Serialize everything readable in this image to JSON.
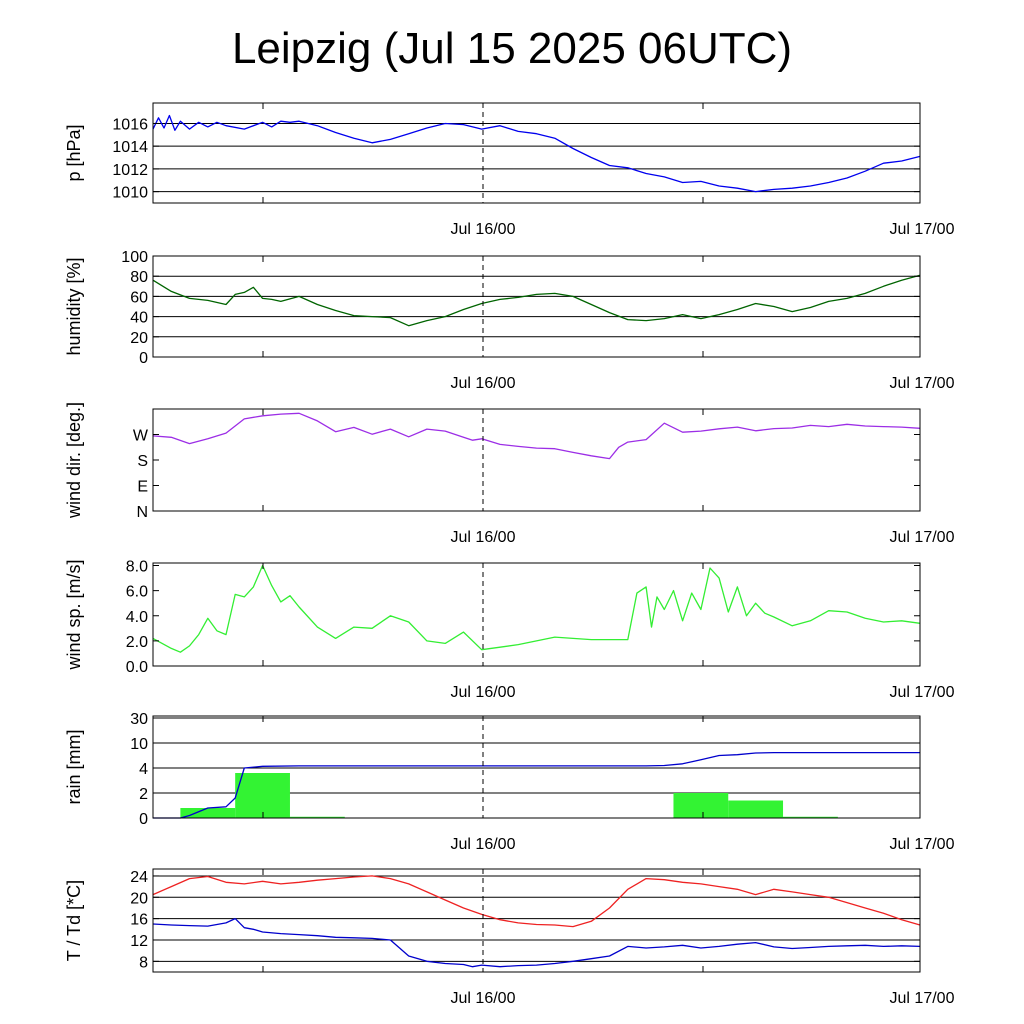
{
  "title": "Leipzig (Jul 15 2025 06UTC)",
  "colors": {
    "pressure": "#0000ee",
    "humidity": "#006400",
    "wind_dir": "#9c2ee6",
    "wind_speed": "#33ee33",
    "rain_bars": "#33f333",
    "rain_accum": "#0000cc",
    "temperature": "#ee2222",
    "dewpoint": "#0000cc",
    "grid": "#000000"
  },
  "chart_data": [
    {
      "type": "line",
      "ylabel": "p [hPa]",
      "x_tick_labels": [
        "Jul 16/00",
        "Jul 17/00"
      ],
      "x_range_hours": [
        0,
        42
      ],
      "ylim": [
        1009,
        1017.8
      ],
      "y_ticks": [
        1010,
        1012,
        1014,
        1016
      ],
      "grid_lines": [
        1010,
        1012,
        1014,
        1016
      ],
      "grid": true,
      "series": [
        {
          "color_key": "pressure",
          "x": [
            0,
            0.3,
            0.6,
            0.9,
            1.2,
            1.5,
            2,
            2.5,
            3,
            3.5,
            4,
            5,
            6,
            6.5,
            7,
            7.5,
            8,
            9,
            10,
            11,
            12,
            13,
            14,
            15,
            16,
            17,
            18,
            19,
            20,
            21,
            22,
            23,
            24,
            25,
            26,
            27,
            28,
            29,
            30,
            31,
            32,
            33,
            34,
            35,
            36,
            37,
            38,
            39,
            40,
            41,
            42
          ],
          "y": [
            1015.5,
            1016.5,
            1015.6,
            1016.7,
            1015.4,
            1016.2,
            1015.5,
            1016.1,
            1015.7,
            1016.1,
            1015.8,
            1015.5,
            1016.1,
            1015.7,
            1016.2,
            1016.1,
            1016.2,
            1015.8,
            1015.2,
            1014.7,
            1014.3,
            1014.6,
            1015.1,
            1015.6,
            1016.0,
            1015.9,
            1015.5,
            1015.8,
            1015.3,
            1015.1,
            1014.7,
            1013.8,
            1013.0,
            1012.3,
            1012.1,
            1011.6,
            1011.3,
            1010.8,
            1010.9,
            1010.5,
            1010.3,
            1010.0,
            1010.2,
            1010.3,
            1010.5,
            1010.8,
            1011.2,
            1011.8,
            1012.5,
            1012.7,
            1013.1
          ]
        }
      ]
    },
    {
      "type": "line",
      "ylabel": "humidity [%]",
      "x_tick_labels": [
        "Jul 16/00",
        "Jul 17/00"
      ],
      "x_range_hours": [
        0,
        42
      ],
      "ylim": [
        0,
        100
      ],
      "y_ticks": [
        0,
        20,
        40,
        60,
        80,
        100
      ],
      "grid_lines": [
        20,
        40,
        60,
        80
      ],
      "grid": true,
      "series": [
        {
          "color_key": "humidity",
          "x": [
            0,
            1,
            2,
            3,
            4,
            4.5,
            5,
            5.5,
            6,
            6.5,
            7,
            8,
            9,
            10,
            11,
            12,
            13,
            14,
            15,
            16,
            17,
            18,
            19,
            20,
            21,
            22,
            23,
            24,
            25,
            26,
            27,
            28,
            29,
            30,
            31,
            32,
            33,
            34,
            35,
            36,
            37,
            38,
            39,
            40,
            41,
            42
          ],
          "y": [
            76,
            65,
            58,
            56,
            52,
            62,
            64,
            69,
            58,
            57,
            55,
            60,
            52,
            46,
            41,
            40,
            39,
            31,
            36,
            40,
            47,
            53,
            57,
            59,
            62,
            63,
            60,
            52,
            44,
            37,
            36,
            38,
            42,
            38,
            42,
            47,
            53,
            50,
            45,
            49,
            55,
            58,
            63,
            70,
            76,
            81
          ]
        }
      ]
    },
    {
      "type": "line",
      "ylabel": "wind dir. [deg.]",
      "x_tick_labels": [
        "Jul 16/00",
        "Jul 17/00"
      ],
      "x_range_hours": [
        0,
        42
      ],
      "ylim": [
        0,
        360
      ],
      "y_ticks": [
        0,
        90,
        180,
        270
      ],
      "y_tick_labels": [
        "N",
        "E",
        "S",
        "W"
      ],
      "grid": false,
      "series": [
        {
          "color_key": "wind_dir",
          "x": [
            0,
            1,
            2,
            3,
            4,
            5,
            6,
            7,
            8,
            9,
            10,
            11,
            12,
            13,
            14,
            15,
            16,
            17,
            17.5,
            18,
            19,
            20,
            21,
            22,
            23,
            24,
            25,
            25.5,
            26,
            27,
            28,
            29,
            30,
            31,
            32,
            33,
            34,
            35,
            36,
            37,
            38,
            39,
            40,
            41,
            42
          ],
          "y": [
            265,
            260,
            238,
            255,
            275,
            325,
            336,
            342,
            345,
            318,
            280,
            295,
            271,
            289,
            262,
            289,
            282,
            260,
            250,
            255,
            235,
            228,
            222,
            220,
            207,
            195,
            185,
            225,
            243,
            252,
            310,
            278,
            282,
            290,
            296,
            283,
            291,
            293,
            302,
            298,
            306,
            300,
            298,
            296,
            292
          ]
        }
      ]
    },
    {
      "type": "line",
      "ylabel": "wind sp. [m/s]",
      "x_tick_labels": [
        "Jul 16/00",
        "Jul 17/00"
      ],
      "x_range_hours": [
        0,
        42
      ],
      "ylim": [
        0,
        8.2
      ],
      "y_ticks": [
        0.0,
        2.0,
        4.0,
        6.0,
        8.0
      ],
      "y_tick_labels": [
        "0.0",
        "2.0",
        "4.0",
        "6.0",
        "8.0"
      ],
      "grid": false,
      "series": [
        {
          "color_key": "wind_speed",
          "x": [
            0,
            1,
            1.5,
            2,
            2.5,
            3,
            3.5,
            4,
            4.5,
            5,
            5.5,
            6,
            6.5,
            7,
            7.5,
            8,
            9,
            10,
            11,
            12,
            13,
            14,
            15,
            16,
            17,
            18,
            19,
            20,
            21,
            22,
            23,
            24,
            25,
            26,
            26.5,
            27,
            27.3,
            27.6,
            28,
            28.5,
            29,
            29.5,
            30,
            30.5,
            31,
            31.5,
            32,
            32.5,
            33,
            33.5,
            34,
            35,
            36,
            37,
            38,
            39,
            40,
            41,
            42
          ],
          "y": [
            2.2,
            1.4,
            1.1,
            1.6,
            2.5,
            3.8,
            2.8,
            2.5,
            5.7,
            5.5,
            6.3,
            8.0,
            6.4,
            5.1,
            5.6,
            4.7,
            3.1,
            2.2,
            3.1,
            3.0,
            4.0,
            3.5,
            2.0,
            1.8,
            2.7,
            1.3,
            1.5,
            1.7,
            2.0,
            2.3,
            2.2,
            2.1,
            2.1,
            2.1,
            5.8,
            6.3,
            3.1,
            5.5,
            4.5,
            6.0,
            3.6,
            5.8,
            4.5,
            7.8,
            7.0,
            4.3,
            6.3,
            4.0,
            5.0,
            4.2,
            3.9,
            3.2,
            3.6,
            4.4,
            4.3,
            3.8,
            3.5,
            3.6,
            3.4
          ]
        }
      ]
    },
    {
      "type": "bar",
      "ylabel": "rain [mm]",
      "x_tick_labels": [
        "Jul 16/00",
        "Jul 17/00"
      ],
      "x_range_hours": [
        0,
        42
      ],
      "y_ticks": [
        0,
        2,
        4,
        10,
        30
      ],
      "grid_lines": [
        2,
        4,
        10,
        30
      ],
      "grid": true,
      "bars": [
        {
          "start": 1.5,
          "end": 4.5,
          "value": 0.8
        },
        {
          "start": 4.5,
          "end": 7.5,
          "value": 3.6
        },
        {
          "start": 7.5,
          "end": 10.5,
          "value": 0.1
        },
        {
          "start": 28.5,
          "end": 31.5,
          "value": 2.0
        },
        {
          "start": 31.5,
          "end": 34.5,
          "value": 1.4
        },
        {
          "start": 34.5,
          "end": 37.5,
          "value": 0.1
        }
      ],
      "series": [
        {
          "name": "accumulated",
          "color_key": "rain_accum",
          "x": [
            0,
            1.5,
            2,
            3,
            4,
            4.5,
            5,
            6,
            8,
            10,
            15,
            20,
            25,
            27,
            28,
            29,
            30,
            31,
            32,
            33,
            34,
            36,
            38,
            40,
            42
          ],
          "y": [
            0,
            0,
            0.2,
            0.8,
            0.9,
            1.6,
            4.0,
            4.4,
            4.5,
            4.5,
            4.5,
            4.5,
            4.5,
            4.5,
            4.6,
            5.0,
            6.0,
            7.0,
            7.2,
            7.6,
            7.7,
            7.7,
            7.7,
            7.7,
            7.7
          ]
        }
      ]
    },
    {
      "type": "line",
      "ylabel": "T / Td [*C]",
      "x_tick_labels": [
        "Jul 16/00",
        "Jul 17/00"
      ],
      "x_range_hours": [
        0,
        42
      ],
      "ylim": [
        6,
        25.3
      ],
      "y_ticks": [
        8,
        12,
        16,
        20,
        24
      ],
      "grid_lines": [
        8,
        12,
        16,
        20,
        24
      ],
      "grid": true,
      "series": [
        {
          "color_key": "temperature",
          "x": [
            0,
            1,
            2,
            3,
            4,
            5,
            6,
            7,
            8,
            9,
            10,
            11,
            12,
            13,
            14,
            15,
            16,
            17,
            18,
            19,
            20,
            21,
            22,
            23,
            24,
            25,
            26,
            27,
            28,
            29,
            30,
            31,
            32,
            33,
            34,
            35,
            36,
            37,
            38,
            39,
            40,
            41,
            42
          ],
          "y": [
            20.5,
            22.0,
            23.5,
            23.9,
            22.8,
            22.5,
            23.0,
            22.5,
            22.8,
            23.2,
            23.5,
            23.8,
            24.0,
            23.5,
            22.5,
            21.0,
            19.5,
            18.0,
            16.8,
            15.8,
            15.2,
            14.9,
            14.8,
            14.5,
            15.5,
            18.0,
            21.5,
            23.5,
            23.3,
            22.8,
            22.5,
            22.0,
            21.5,
            20.5,
            21.5,
            21.0,
            20.5,
            20.0,
            19.0,
            18.0,
            17.0,
            15.8,
            14.8
          ]
        },
        {
          "color_key": "dewpoint",
          "x": [
            0,
            1,
            2,
            3,
            4,
            4.5,
            5,
            5.5,
            6,
            7,
            8,
            9,
            10,
            11,
            12,
            13,
            14,
            15,
            16,
            17,
            17.5,
            18,
            19,
            20,
            21,
            22,
            23,
            24,
            25,
            26,
            27,
            28,
            29,
            30,
            31,
            32,
            33,
            34,
            35,
            36,
            37,
            38,
            39,
            40,
            41,
            42
          ],
          "y": [
            15.0,
            14.8,
            14.7,
            14.6,
            15.2,
            16.0,
            14.3,
            14.0,
            13.5,
            13.2,
            13.0,
            12.8,
            12.5,
            12.4,
            12.3,
            12.0,
            9.0,
            8.0,
            7.6,
            7.4,
            7.0,
            7.3,
            7.0,
            7.2,
            7.3,
            7.6,
            8.0,
            8.5,
            9.0,
            10.8,
            10.5,
            10.7,
            11.0,
            10.5,
            10.8,
            11.2,
            11.5,
            10.7,
            10.4,
            10.6,
            10.8,
            10.9,
            11.0,
            10.8,
            10.9,
            10.8
          ]
        }
      ]
    }
  ]
}
